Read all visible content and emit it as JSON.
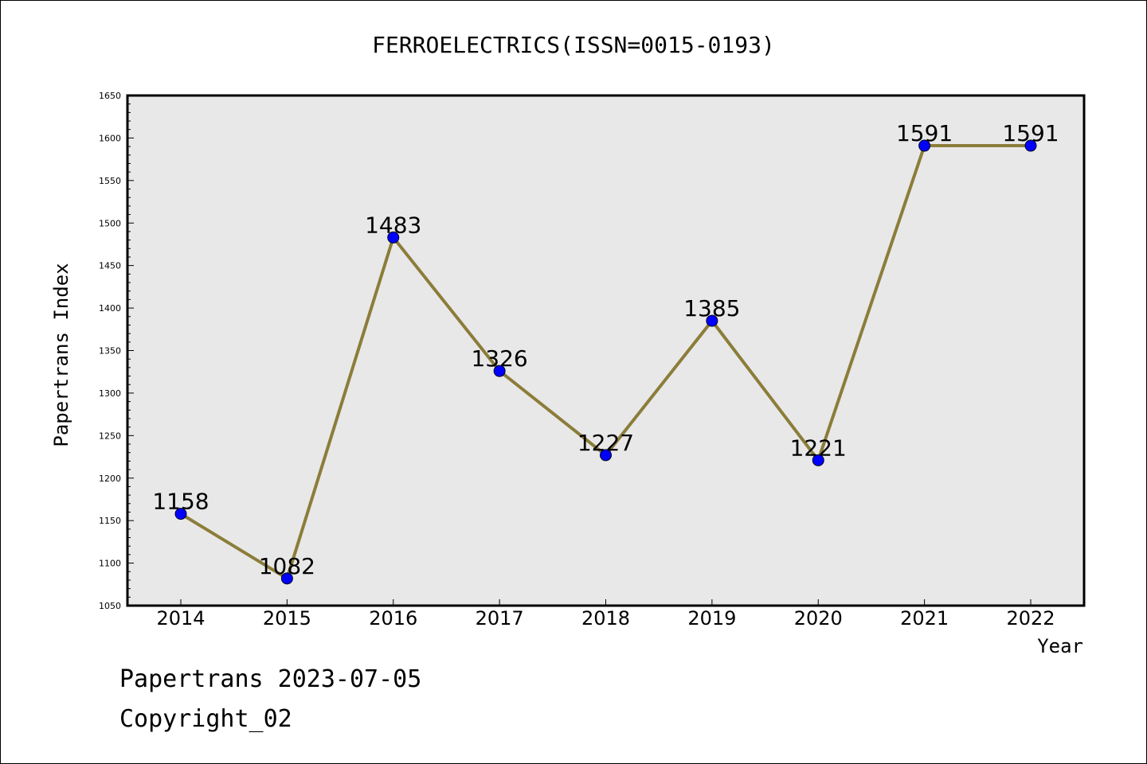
{
  "chart_data": {
    "type": "line",
    "title": "FERROELECTRICS(ISSN=0015-0193)",
    "xlabel": "Year",
    "ylabel": "Papertrans Index",
    "categories": [
      "2014",
      "2015",
      "2016",
      "2017",
      "2018",
      "2019",
      "2020",
      "2021",
      "2022"
    ],
    "values": [
      1158,
      1082,
      1483,
      1326,
      1227,
      1385,
      1221,
      1591,
      1591
    ],
    "data_labels": [
      "1158",
      "1082",
      "1483",
      "1326",
      "1227",
      "1385",
      "1221",
      "1591",
      "1591"
    ],
    "ylim": [
      1050,
      1650
    ],
    "yticks": [
      1050,
      1100,
      1150,
      1200,
      1250,
      1300,
      1350,
      1400,
      1450,
      1500,
      1550,
      1600,
      1650
    ],
    "grid": false,
    "line_color": "#8B7D3A",
    "marker_color": "#0000FF",
    "plot_background": "#E8E8E8"
  },
  "footer": {
    "line1": "Papertrans 2023-07-05",
    "line2": "Copyright_02"
  }
}
